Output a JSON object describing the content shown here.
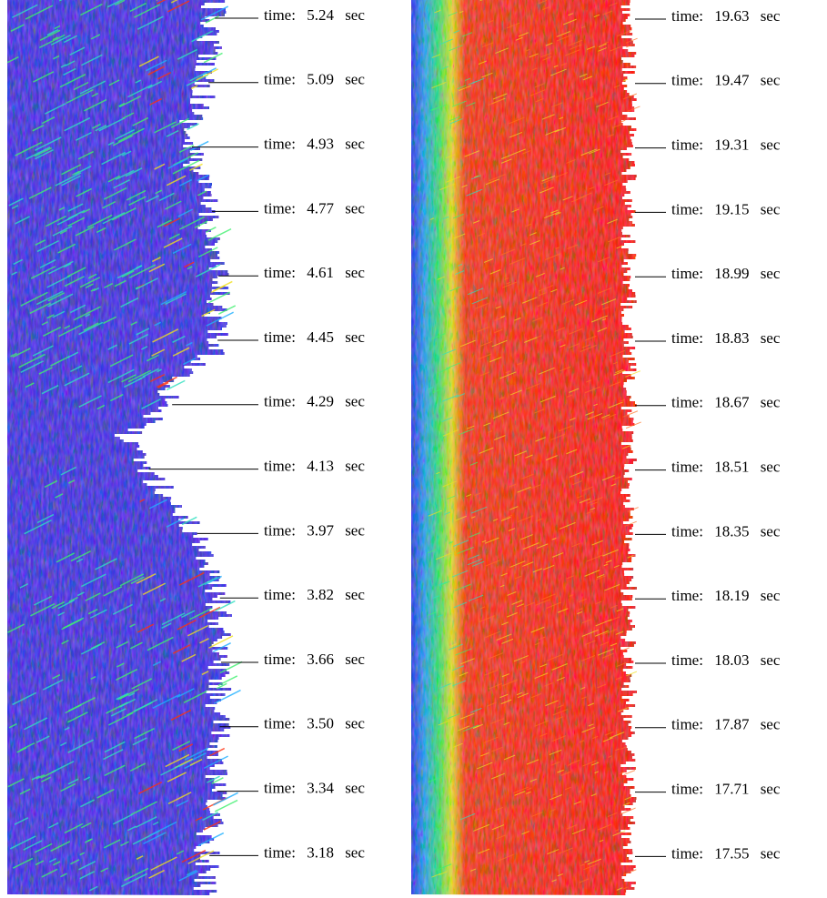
{
  "left_panel": {
    "labels": [
      "time: 5.24 sec",
      "time: 5.09 sec",
      "time: 4.93 sec",
      "time: 4.77 sec",
      "time: 4.61 sec",
      "time: 4.45 sec",
      "time: 4.29 sec",
      "time: 4.13 sec",
      "time: 3.97 sec",
      "time: 3.82 sec",
      "time: 3.66 sec",
      "time: 3.50 sec",
      "time: 3.34 sec",
      "time: 3.18 sec"
    ]
  },
  "right_panel": {
    "labels": [
      "time: 19.63 sec",
      "time: 19.47 sec",
      "time: 19.31 sec",
      "time: 19.15 sec",
      "time: 18.99 sec",
      "time: 18.83 sec",
      "time: 18.67 sec",
      "time: 18.51 sec",
      "time: 18.35 sec",
      "time: 18.19 sec",
      "time: 18.03 sec",
      "time: 17.87 sec",
      "time: 17.71 sec",
      "time: 17.55 sec"
    ]
  }
}
